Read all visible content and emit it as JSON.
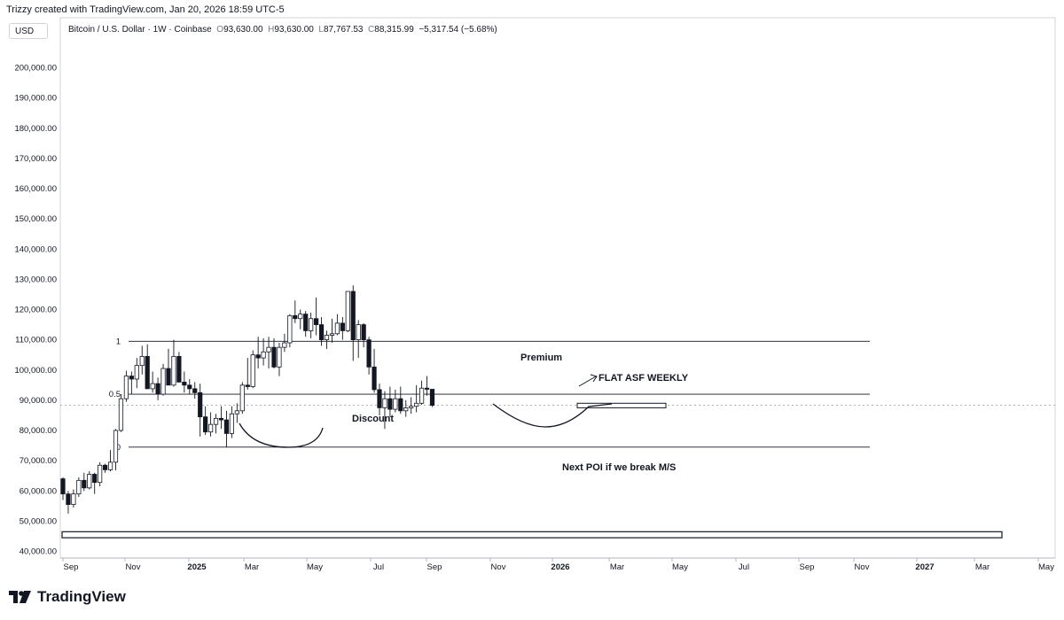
{
  "header": {
    "credit": "Trizzy created with TradingView.com, Jan 20, 2026 18:59 UTC-5",
    "currency": "USD"
  },
  "legend": {
    "symbol": "Bitcoin / U.S. Dollar · 1W · Coinbase",
    "open_label": "O",
    "open": "93,630.00",
    "high_label": "H",
    "high": "93,630.00",
    "low_label": "L",
    "low": "87,767.53",
    "close_label": "C",
    "close": "88,315.99",
    "change": "−5,317.54 (−5.68%)"
  },
  "brand": {
    "name": "TradingView"
  },
  "chart_data": {
    "type": "candlestick",
    "timeframe": "1W",
    "y_ticks": [
      "200,000.00",
      "190,000.00",
      "180,000.00",
      "170,000.00",
      "160,000.00",
      "150,000.00",
      "140,000.00",
      "130,000.00",
      "120,000.00",
      "110,000.00",
      "100,000.00",
      "90,000.00",
      "80,000.00",
      "70,000.00",
      "60,000.00",
      "50,000.00",
      "40,000.00"
    ],
    "ylim": [
      37000,
      213000
    ],
    "x_ticks": [
      {
        "label": "Sep",
        "bold": false
      },
      {
        "label": "Nov",
        "bold": false
      },
      {
        "label": "2025",
        "bold": true
      },
      {
        "label": "Mar",
        "bold": false
      },
      {
        "label": "May",
        "bold": false
      },
      {
        "label": "Jul",
        "bold": false
      },
      {
        "label": "Sep",
        "bold": false
      },
      {
        "label": "Nov",
        "bold": false
      },
      {
        "label": "2026",
        "bold": true
      },
      {
        "label": "Mar",
        "bold": false
      },
      {
        "label": "May",
        "bold": false
      },
      {
        "label": "Jul",
        "bold": false
      },
      {
        "label": "Sep",
        "bold": false
      },
      {
        "label": "Nov",
        "bold": false
      },
      {
        "label": "2027",
        "bold": true
      },
      {
        "label": "Mar",
        "bold": false
      },
      {
        "label": "May",
        "bold": false
      }
    ],
    "candles": [
      [
        64000,
        64500,
        57000,
        59000
      ],
      [
        59000,
        60000,
        52500,
        55500
      ],
      [
        55500,
        60500,
        54500,
        59000
      ],
      [
        59000,
        64500,
        58000,
        63500
      ],
      [
        63500,
        66000,
        60000,
        61000
      ],
      [
        61000,
        66500,
        60500,
        65500
      ],
      [
        65500,
        66000,
        59000,
        62800
      ],
      [
        62800,
        69500,
        61500,
        68500
      ],
      [
        68500,
        69000,
        66000,
        67000
      ],
      [
        67000,
        73500,
        66500,
        69500
      ],
      [
        69500,
        80500,
        66800,
        80000
      ],
      [
        80000,
        92000,
        79500,
        90500
      ],
      [
        90500,
        99800,
        89500,
        98000
      ],
      [
        98000,
        99500,
        92000,
        97000
      ],
      [
        97000,
        104000,
        94000,
        101500
      ],
      [
        101500,
        108000,
        98500,
        104500
      ],
      [
        104500,
        108500,
        94000,
        93800
      ],
      [
        93800,
        99500,
        92500,
        95500
      ],
      [
        95500,
        97500,
        90000,
        92000
      ],
      [
        92000,
        102000,
        91500,
        100500
      ],
      [
        100500,
        107000,
        95500,
        95000
      ],
      [
        95000,
        110000,
        94500,
        104500
      ],
      [
        104500,
        106000,
        96000,
        96000
      ],
      [
        96000,
        99500,
        92500,
        95000
      ],
      [
        95000,
        97000,
        92000,
        93800
      ],
      [
        93800,
        96000,
        90500,
        92500
      ],
      [
        92500,
        95500,
        78000,
        84500
      ],
      [
        84500,
        88000,
        78500,
        79500
      ],
      [
        79500,
        86000,
        78000,
        82000
      ],
      [
        82000,
        85500,
        79000,
        84000
      ],
      [
        84000,
        88000,
        80500,
        83500
      ],
      [
        83500,
        86500,
        74500,
        79000
      ],
      [
        79000,
        88000,
        77500,
        85500
      ],
      [
        85500,
        89000,
        82500,
        86500
      ],
      [
        86500,
        96000,
        85500,
        95000
      ],
      [
        95000,
        104000,
        93500,
        94500
      ],
      [
        94500,
        106500,
        94000,
        105000
      ],
      [
        105000,
        111000,
        100500,
        104000
      ],
      [
        104000,
        110500,
        101500,
        106000
      ],
      [
        106000,
        111000,
        100500,
        107500
      ],
      [
        107500,
        110500,
        100500,
        101000
      ],
      [
        101000,
        109000,
        98000,
        107500
      ],
      [
        107500,
        112000,
        106000,
        109000
      ],
      [
        109000,
        118500,
        107500,
        118000
      ],
      [
        118000,
        123000,
        115500,
        117000
      ],
      [
        117000,
        120000,
        113500,
        118500
      ],
      [
        118500,
        119500,
        111000,
        113000
      ],
      [
        113000,
        119000,
        110500,
        117000
      ],
      [
        117000,
        124000,
        111500,
        115000
      ],
      [
        115000,
        117500,
        108000,
        110000
      ],
      [
        110000,
        113000,
        107000,
        111500
      ],
      [
        111500,
        117000,
        109000,
        112000
      ],
      [
        112000,
        118500,
        111500,
        115500
      ],
      [
        115500,
        117500,
        110000,
        113000
      ],
      [
        113000,
        126000,
        112500,
        126000
      ],
      [
        126000,
        128000,
        103000,
        110000
      ],
      [
        110000,
        116500,
        104000,
        115000
      ],
      [
        115000,
        115500,
        107500,
        110000
      ],
      [
        110000,
        111000,
        98500,
        101000
      ],
      [
        101000,
        107000,
        92500,
        93500
      ],
      [
        93500,
        95500,
        85000,
        87500
      ],
      [
        87500,
        93000,
        80500,
        90500
      ],
      [
        90500,
        94500,
        84500,
        87000
      ],
      [
        87000,
        93500,
        86000,
        90500
      ],
      [
        90500,
        94500,
        85500,
        86500
      ],
      [
        86500,
        90000,
        84500,
        87500
      ],
      [
        87500,
        91000,
        85500,
        88000
      ],
      [
        88000,
        95000,
        86000,
        89000
      ],
      [
        89000,
        96500,
        88500,
        94000
      ],
      [
        94000,
        98000,
        91500,
        93630
      ],
      [
        93630,
        93630,
        87767,
        88316
      ]
    ],
    "fib_levels": [
      {
        "label": "1",
        "price": 109500
      },
      {
        "label": "0.5",
        "price": 92000
      },
      {
        "label": "0",
        "price": 74500
      }
    ],
    "last_price": 88316,
    "annotations": [
      "Premium",
      "Discount",
      "FLAT ASF WEEKLY",
      "Next POI if we break M/S"
    ],
    "zones": [
      {
        "from": 87500,
        "to": 89000
      },
      {
        "from": 44500,
        "to": 46500
      }
    ]
  }
}
